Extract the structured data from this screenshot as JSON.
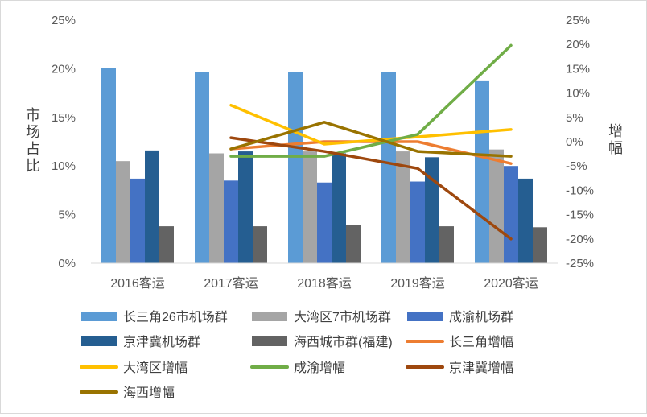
{
  "chart_data": {
    "type": "bar",
    "title": "",
    "ylabel": "市场占比",
    "y2label": "增幅",
    "categories": [
      "2016客运",
      "2017客运",
      "2018客运",
      "2019客运",
      "2020客运"
    ],
    "ylim": [
      0,
      25
    ],
    "y_ticks": [
      "0%",
      "5%",
      "10%",
      "15%",
      "20%",
      "25%"
    ],
    "y2lim": [
      -25,
      25
    ],
    "y2_ticks": [
      "-25%",
      "-20%",
      "-15%",
      "-10%",
      "-5%",
      "0%",
      "5%",
      "10%",
      "15%",
      "20%",
      "25%"
    ],
    "grid": false,
    "legend_position": "bottom",
    "bar_series": [
      {
        "name": "长三角26市机场群",
        "color": "#5B9BD5",
        "values": [
          20.1,
          19.7,
          19.7,
          19.7,
          18.8
        ]
      },
      {
        "name": "大湾区7市机场群",
        "color": "#A5A5A5",
        "values": [
          10.5,
          11.3,
          11.5,
          11.5,
          11.7
        ]
      },
      {
        "name": "成渝机场群",
        "color": "#4472C4",
        "values": [
          8.7,
          8.5,
          8.3,
          8.4,
          10.0
        ]
      },
      {
        "name": "京津冀机场群",
        "color": "#255E91",
        "values": [
          11.6,
          11.5,
          11.3,
          10.9,
          8.7
        ]
      },
      {
        "name": "海西城市群(福建)",
        "color": "#636363",
        "values": [
          3.8,
          3.8,
          3.9,
          3.8,
          3.7
        ]
      }
    ],
    "line_series": [
      {
        "name": "长三角增幅",
        "color": "#ED7D31",
        "values": [
          null,
          -1.5,
          0,
          0,
          -4.5
        ]
      },
      {
        "name": "大湾区增幅",
        "color": "#FFC000",
        "values": [
          null,
          7.5,
          -0.5,
          1.0,
          2.5
        ]
      },
      {
        "name": "成渝增幅",
        "color": "#70AD47",
        "values": [
          null,
          -3.0,
          -3.0,
          1.5,
          19.8
        ]
      },
      {
        "name": "京津冀增幅",
        "color": "#9E480E",
        "values": [
          null,
          0.8,
          -2.0,
          -5.5,
          -20.0
        ]
      },
      {
        "name": "海西增幅",
        "color": "#997300",
        "values": [
          null,
          -1.5,
          4.0,
          -2.0,
          -3.0
        ]
      }
    ]
  }
}
